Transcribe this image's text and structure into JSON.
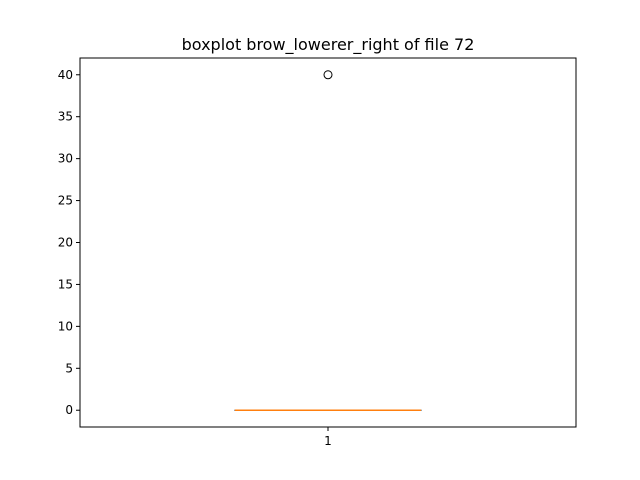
{
  "chart_data": {
    "type": "boxplot",
    "title": "boxplot brow_lowerer_right of file 72",
    "xlabel": "",
    "ylabel": "",
    "categories": [
      "1"
    ],
    "ylim": [
      -2,
      42
    ],
    "yticks": [
      0,
      5,
      10,
      15,
      20,
      25,
      30,
      35,
      40
    ],
    "grid": false,
    "boxes": [
      {
        "category": "1",
        "whisker_low": 0,
        "q1": 0,
        "median": 0,
        "q3": 0,
        "whisker_high": 0,
        "outliers": [
          40
        ]
      }
    ],
    "colors": {
      "box": "#000000",
      "median": "#ff7f0e",
      "outlier": "#000000"
    }
  }
}
